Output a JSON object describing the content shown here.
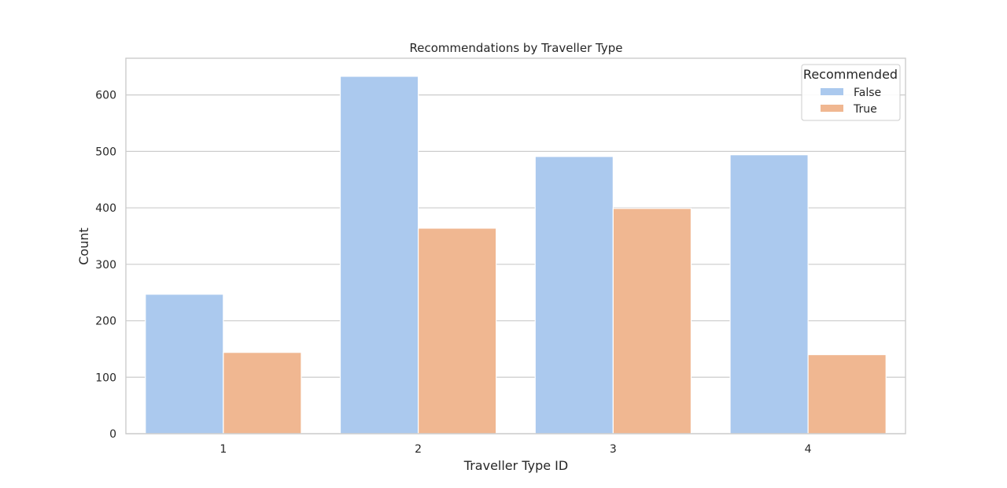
{
  "chart_data": {
    "type": "bar",
    "title": "Recommendations by Traveller Type",
    "xlabel": "Traveller Type ID",
    "ylabel": "Count",
    "categories": [
      "1",
      "2",
      "3",
      "4"
    ],
    "series": [
      {
        "name": "False",
        "values": [
          247,
          633,
          491,
          494
        ],
        "color": "#abc9ee"
      },
      {
        "name": "True",
        "values": [
          144,
          364,
          399,
          140
        ],
        "color": "#f0b791"
      }
    ],
    "ylim": [
      0,
      665
    ],
    "yticks": [
      0,
      100,
      200,
      300,
      400,
      500,
      600
    ],
    "grid": true,
    "legend": {
      "title": "Recommended",
      "position": "top-right"
    }
  }
}
